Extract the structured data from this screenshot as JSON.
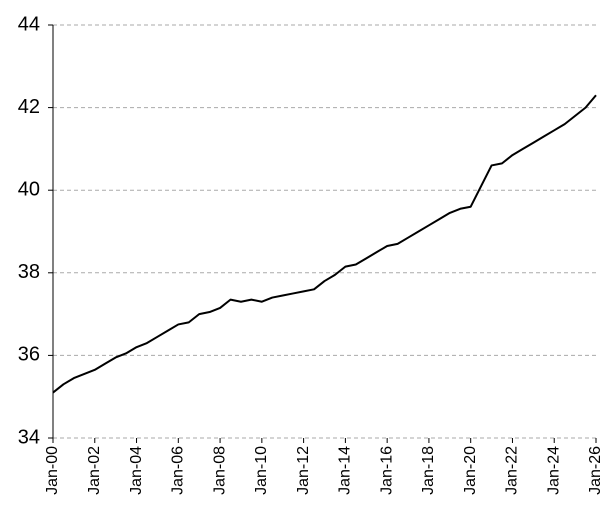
{
  "chart_data": {
    "type": "line",
    "categories": [
      "Jan-00",
      null,
      null,
      null,
      "Jan-02",
      null,
      null,
      null,
      "Jan-04",
      null,
      null,
      null,
      "Jan-06",
      null,
      null,
      null,
      "Jan-08",
      null,
      null,
      null,
      "Jan-10",
      null,
      null,
      null,
      "Jan-12",
      null,
      null,
      null,
      "Jan-14",
      null,
      null,
      null,
      "Jan-16",
      null,
      null,
      null,
      "Jan-18",
      null,
      null,
      null,
      "Jan-20",
      null,
      null,
      null,
      "Jan-22",
      null,
      null,
      null,
      "Jan-24",
      null,
      null,
      null,
      "Jan-26"
    ],
    "values": [
      35.1,
      35.3,
      35.45,
      35.55,
      35.65,
      35.8,
      35.95,
      36.05,
      36.2,
      36.3,
      36.45,
      36.6,
      36.75,
      36.8,
      37.0,
      37.05,
      37.15,
      37.35,
      37.3,
      37.35,
      37.3,
      37.4,
      37.45,
      37.5,
      37.55,
      37.6,
      37.8,
      37.95,
      38.15,
      38.2,
      38.35,
      38.5,
      38.65,
      38.7,
      38.85,
      39.0,
      39.15,
      39.3,
      39.45,
      39.55,
      39.6,
      40.1,
      40.6,
      40.65,
      40.85,
      41.0,
      41.15,
      41.3,
      41.45,
      41.6,
      41.8,
      42.0,
      42.3
    ],
    "color": "#000000",
    "ylim": [
      34,
      44
    ],
    "yticks": [
      34,
      36,
      38,
      40,
      42,
      44
    ],
    "grid": true
  }
}
